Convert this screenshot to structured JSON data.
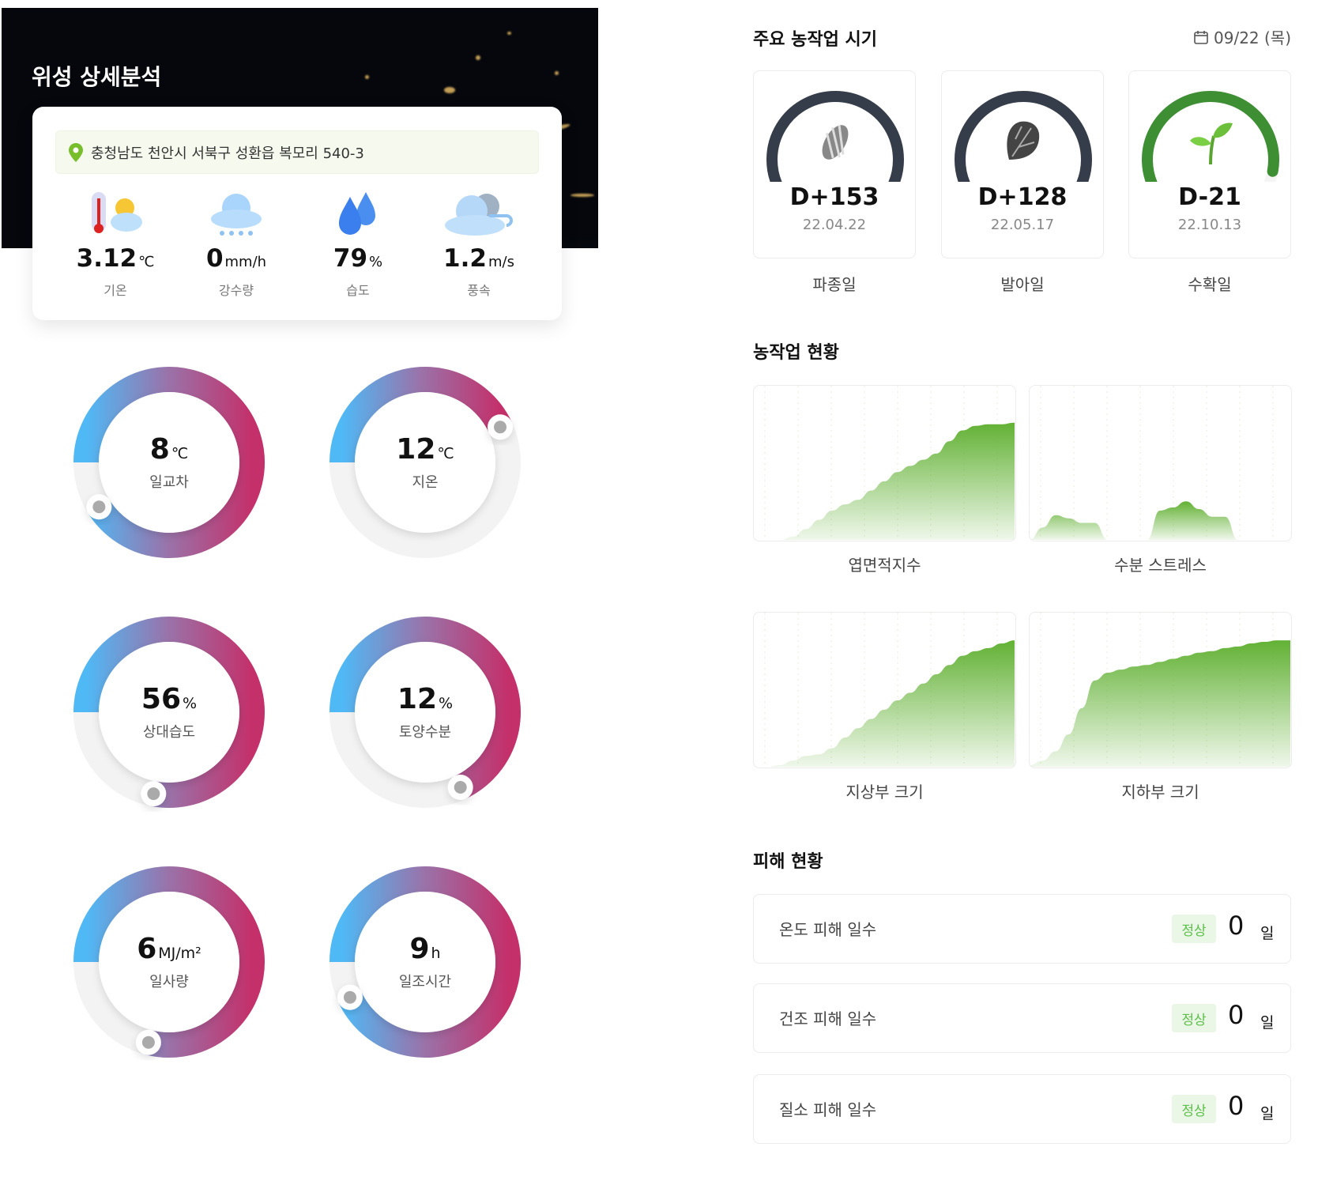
{
  "banner": {
    "title": "위성 상세분석"
  },
  "weather": {
    "address": "충청남도 천안시 서북구 성환읍 복모리 540-3",
    "items": [
      {
        "icon": "thermometer-sun-icon",
        "value": "3.12",
        "unit": "℃",
        "label": "기온"
      },
      {
        "icon": "rain-cloud-icon",
        "value": "0",
        "unit": "mm/h",
        "label": "강수량"
      },
      {
        "icon": "water-drops-icon",
        "value": "79",
        "unit": "%",
        "label": "습도"
      },
      {
        "icon": "wind-cloud-icon",
        "value": "1.2",
        "unit": "m/s",
        "label": "풍속"
      }
    ]
  },
  "rings": [
    {
      "value": "8",
      "unit": "℃",
      "label": "일교차",
      "progress": 0.91
    },
    {
      "value": "12",
      "unit": "℃",
      "label": "지온",
      "progress": 0.43
    },
    {
      "value": "56",
      "unit": "%",
      "label": "상대습도",
      "progress": 0.78
    },
    {
      "value": "12",
      "unit": "%",
      "label": "토양수분",
      "progress": 0.68
    },
    {
      "value": "6",
      "unit": "MJ/m²",
      "label": "일사량",
      "progress": 0.79
    },
    {
      "value": "9",
      "unit": "h",
      "label": "일조시간",
      "progress": 0.93
    }
  ],
  "ring_colors": {
    "start": "#4fb9f6",
    "mid": "#9a72a8",
    "end": "#c4306a",
    "track": "#f3f3f3"
  },
  "schedule": {
    "title": "주요 농작업 시기",
    "date": "09/22 (목)",
    "stages": [
      {
        "icon": "seed-icon",
        "d_day": "D+153",
        "date": "22.04.22",
        "label": "파종일",
        "progress": 1.0,
        "color": "#363d4a"
      },
      {
        "icon": "lettuce-icon",
        "d_day": "D+128",
        "date": "22.05.17",
        "label": "발아일",
        "progress": 1.0,
        "color": "#363d4a"
      },
      {
        "icon": "sprout-icon",
        "d_day": "D-21",
        "date": "22.10.13",
        "label": "수확일",
        "progress": 0.93,
        "color": "#3e8e34"
      }
    ]
  },
  "status": {
    "title": "농작업 현황",
    "charts": [
      {
        "label": "엽면적지수"
      },
      {
        "label": "수분 스트레스"
      },
      {
        "label": "지상부 크기"
      },
      {
        "label": "지하부 크기"
      }
    ]
  },
  "chart_data": [
    {
      "type": "area",
      "title": "엽면적지수",
      "ylim": [
        0,
        100
      ],
      "grid": "vertical-dotted",
      "color": "#62b134",
      "values": [
        0,
        0,
        0,
        2,
        7,
        13,
        19,
        23,
        26,
        32,
        38,
        44,
        48,
        52,
        56,
        64,
        71,
        74,
        75,
        75,
        76
      ]
    },
    {
      "type": "area",
      "title": "수분 스트레스",
      "ylim": [
        0,
        100
      ],
      "grid": "vertical-dotted",
      "color": "#62b134",
      "values": [
        0,
        8,
        16,
        14,
        11,
        11,
        0,
        0,
        0,
        0,
        19,
        21,
        25,
        20,
        15,
        15,
        0,
        0,
        0,
        0,
        0
      ]
    },
    {
      "type": "area",
      "title": "지상부 크기",
      "ylim": [
        0,
        100
      ],
      "grid": "vertical-dotted",
      "color": "#62b134",
      "values": [
        0,
        0,
        1,
        4,
        7,
        8,
        12,
        19,
        25,
        31,
        37,
        43,
        48,
        54,
        60,
        66,
        72,
        75,
        77,
        80,
        82
      ]
    },
    {
      "type": "area",
      "title": "지하부 크기",
      "ylim": [
        0,
        100
      ],
      "grid": "vertical-dotted",
      "color": "#62b134",
      "values": [
        1,
        4,
        10,
        21,
        38,
        56,
        61,
        63,
        65,
        66,
        68,
        70,
        72,
        74,
        75,
        77,
        78,
        80,
        81,
        82,
        82
      ]
    }
  ],
  "damage": {
    "title": "피해 현황",
    "rows": [
      {
        "label": "온도 피해 일수",
        "badge": "정상",
        "value": "0",
        "unit": "일"
      },
      {
        "label": "건조 피해 일수",
        "badge": "정상",
        "value": "0",
        "unit": "일"
      },
      {
        "label": "질소 피해 일수",
        "badge": "정상",
        "value": "0",
        "unit": "일"
      }
    ]
  }
}
